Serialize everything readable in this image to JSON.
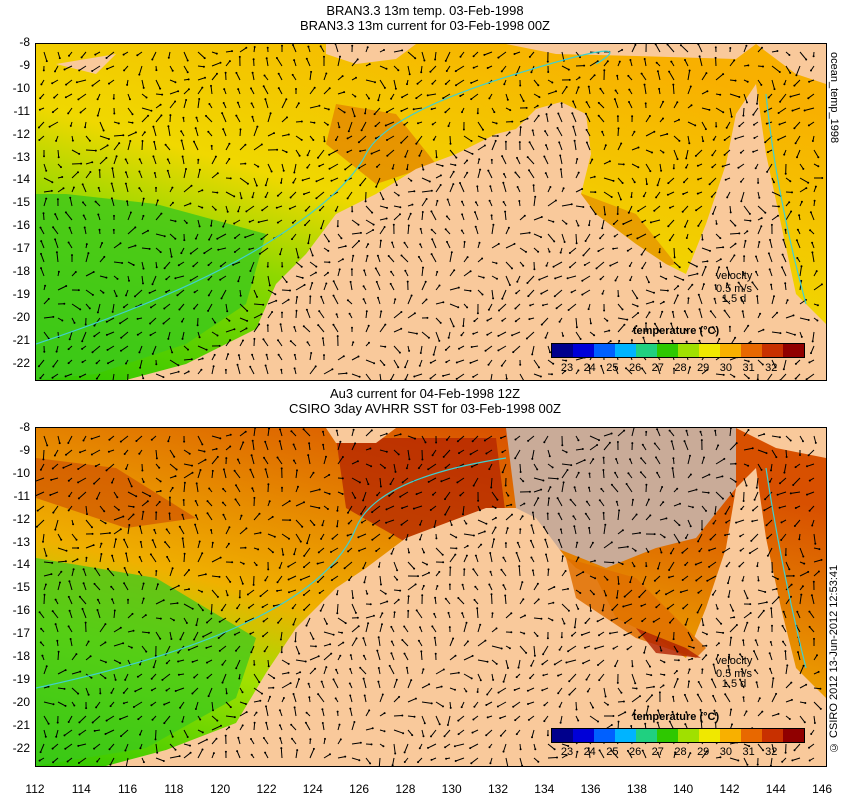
{
  "panel_top": {
    "title_line1": "BRAN3.3 13m temp. 03-Feb-1998",
    "title_line2": "BRAN3.3 13m current for 03-Feb-1998 00Z",
    "side_label": "ocean_temp_1998",
    "velocity_label": "velocity",
    "velocity_scale": "0.5 m/s",
    "velocity_duration": "1.5 d",
    "legend_title": "temperature (°C)",
    "legend_ticks": [
      "23",
      "24",
      "25",
      "26",
      "27",
      "28",
      "29",
      "30",
      "31",
      "32"
    ]
  },
  "panel_bottom": {
    "title_line1": "Au3 current for 04-Feb-1998 12Z",
    "title_line2": "CSIRO 3day AVHRR SST for 03-Feb-1998 00Z",
    "side_label": "© CSIRO 2012  13-Jun-2012 12:53:41",
    "velocity_label": "velocity",
    "velocity_scale": "0.5 m/s",
    "velocity_duration": "1.5 d",
    "legend_title": "temperature (°C)",
    "legend_ticks": [
      "23",
      "24",
      "25",
      "26",
      "27",
      "28",
      "29",
      "30",
      "31",
      "32"
    ]
  },
  "y_axis_labels": [
    "-8",
    "-9",
    "-10",
    "-11",
    "-12",
    "-13",
    "-14",
    "-15",
    "-16",
    "-17",
    "-18",
    "-19",
    "-20",
    "-21",
    "-22"
  ],
  "x_axis_labels": [
    "112",
    "114",
    "116",
    "118",
    "120",
    "122",
    "124",
    "126",
    "128",
    "130",
    "132",
    "134",
    "136",
    "138",
    "140",
    "142",
    "144",
    "146"
  ],
  "colors": {
    "land": "#f9c99b",
    "land_outline": "#a07040",
    "no_data": "#c9ab98",
    "colormap": [
      "#00008c",
      "#0000d8",
      "#0060ff",
      "#00b4ff",
      "#20d080",
      "#2ec800",
      "#a0e000",
      "#f0e800",
      "#f8b000",
      "#e86800",
      "#c83000",
      "#900000"
    ]
  }
}
